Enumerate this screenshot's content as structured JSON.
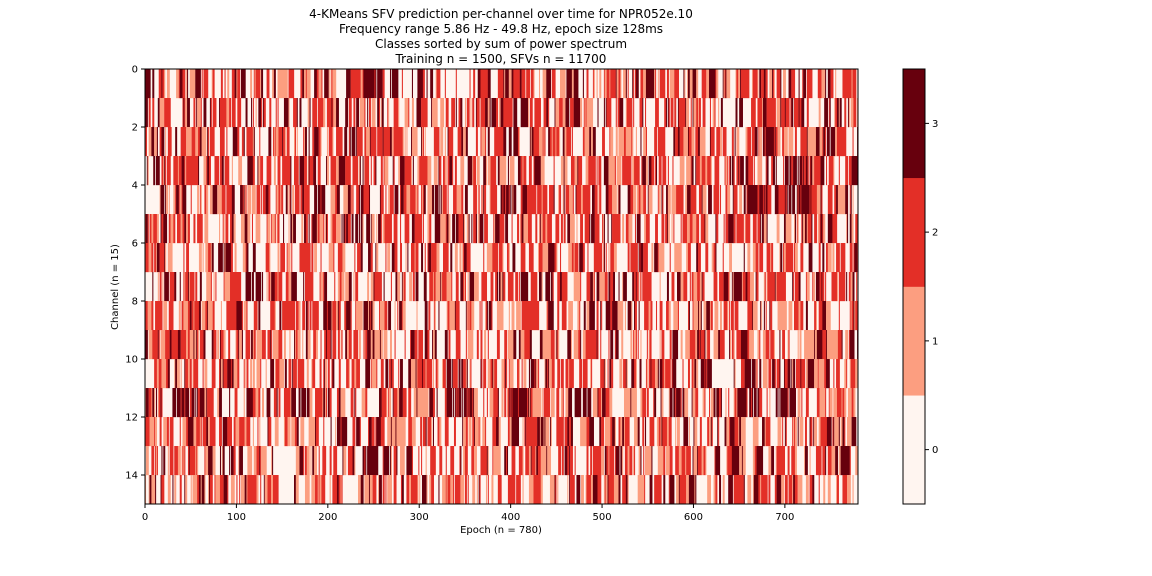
{
  "chart_data": {
    "type": "heatmap",
    "title_lines": [
      "4-KMeans SFV prediction per-channel over time for NPR052e.10",
      "Frequency range 5.86 Hz - 49.8 Hz, epoch size 128ms",
      "Classes sorted by sum of power spectrum",
      "Training n = 1500, SFVs n = 11700"
    ],
    "xlabel": "Epoch (n = 780)",
    "ylabel": "Channel (n = 15)",
    "xlim": [
      0,
      780
    ],
    "ylim": [
      15,
      0
    ],
    "x_ticks": [
      0,
      100,
      200,
      300,
      400,
      500,
      600,
      700
    ],
    "y_ticks": [
      0,
      2,
      4,
      6,
      8,
      10,
      12,
      14
    ],
    "n_channels": 15,
    "n_epochs": 780,
    "classes": [
      0,
      1,
      2,
      3
    ],
    "colorbar": {
      "ticks": [
        0,
        1,
        2,
        3
      ],
      "colors": [
        "#fff5f0",
        "#fc9e80",
        "#e32f27",
        "#67000d"
      ]
    },
    "class_fraction_estimate": [
      0.35,
      0.2,
      0.3,
      0.15
    ],
    "dense_class3_segments": [
      {
        "channel": 0,
        "start": 238,
        "end": 262
      },
      {
        "channel": 0,
        "start": 268,
        "end": 276
      },
      {
        "channel": 2,
        "start": 218,
        "end": 232
      },
      {
        "channel": 2,
        "start": 675,
        "end": 690
      },
      {
        "channel": 2,
        "start": 741,
        "end": 755
      },
      {
        "channel": 3,
        "start": 640,
        "end": 660
      },
      {
        "channel": 3,
        "start": 700,
        "end": 730
      },
      {
        "channel": 4,
        "start": 388,
        "end": 402
      },
      {
        "channel": 4,
        "start": 655,
        "end": 680
      },
      {
        "channel": 4,
        "start": 700,
        "end": 730
      },
      {
        "channel": 5,
        "start": 215,
        "end": 238
      },
      {
        "channel": 11,
        "start": 30,
        "end": 65
      },
      {
        "channel": 11,
        "start": 160,
        "end": 180
      },
      {
        "channel": 11,
        "start": 335,
        "end": 360
      },
      {
        "channel": 11,
        "start": 398,
        "end": 420
      },
      {
        "channel": 11,
        "start": 470,
        "end": 490
      },
      {
        "channel": 11,
        "start": 575,
        "end": 590
      },
      {
        "channel": 11,
        "start": 648,
        "end": 672
      },
      {
        "channel": 11,
        "start": 690,
        "end": 712
      },
      {
        "channel": 13,
        "start": 240,
        "end": 255
      }
    ]
  }
}
